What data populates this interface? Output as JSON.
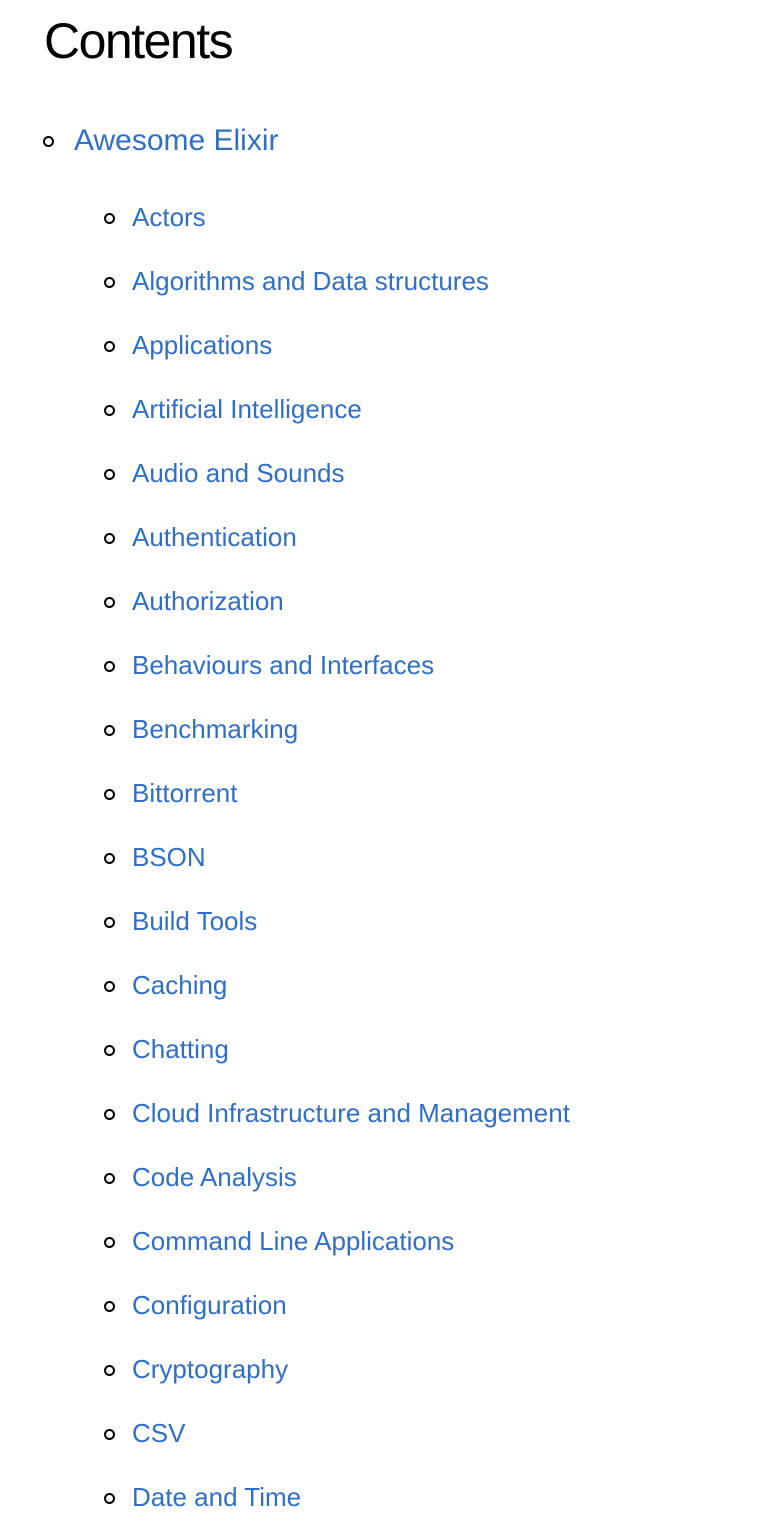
{
  "page": {
    "title": "Contents"
  },
  "toc": {
    "top_item": {
      "label": "Awesome Elixir"
    },
    "sub_items": [
      {
        "label": "Actors"
      },
      {
        "label": "Algorithms and Data structures"
      },
      {
        "label": "Applications"
      },
      {
        "label": "Artificial Intelligence"
      },
      {
        "label": "Audio and Sounds"
      },
      {
        "label": "Authentication"
      },
      {
        "label": "Authorization"
      },
      {
        "label": "Behaviours and Interfaces"
      },
      {
        "label": "Benchmarking"
      },
      {
        "label": "Bittorrent"
      },
      {
        "label": "BSON"
      },
      {
        "label": "Build Tools"
      },
      {
        "label": "Caching"
      },
      {
        "label": "Chatting"
      },
      {
        "label": "Cloud Infrastructure and Management"
      },
      {
        "label": "Code Analysis"
      },
      {
        "label": "Command Line Applications"
      },
      {
        "label": "Configuration"
      },
      {
        "label": "Cryptography"
      },
      {
        "label": "CSV"
      },
      {
        "label": "Date and Time"
      }
    ]
  },
  "colors": {
    "link": "#2f6fc7",
    "text": "#000000",
    "background": "#ffffff"
  },
  "icons": {
    "bullet": "hollow-circle-bullet-icon"
  }
}
